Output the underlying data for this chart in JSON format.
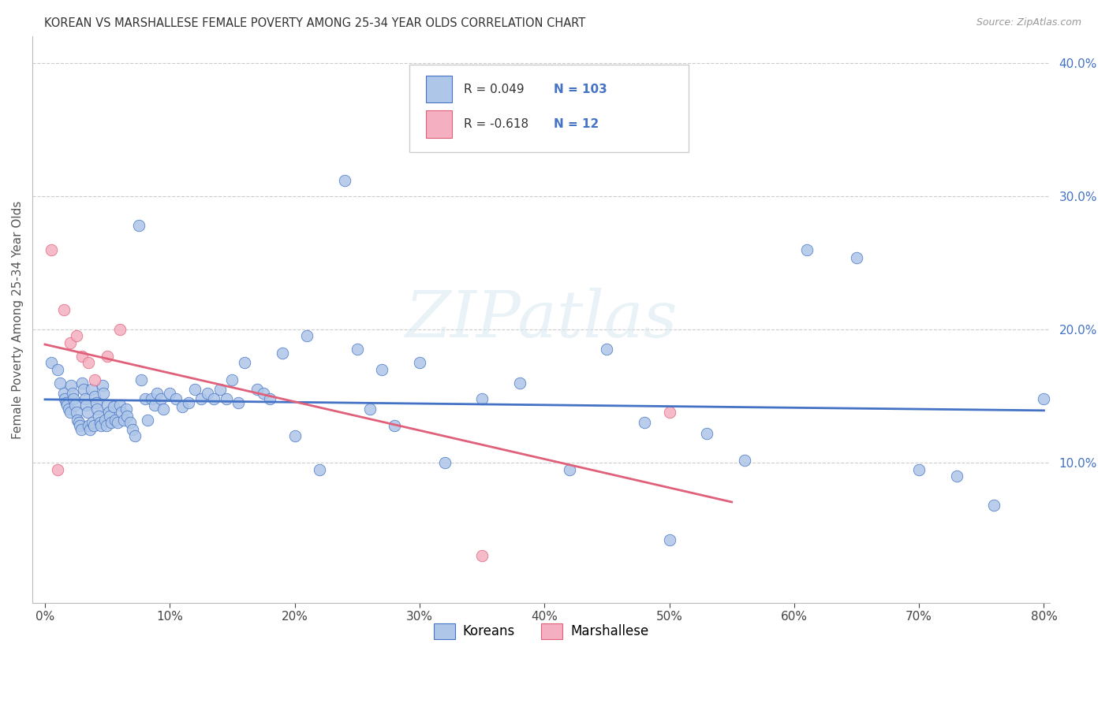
{
  "title": "KOREAN VS MARSHALLESE FEMALE POVERTY AMONG 25-34 YEAR OLDS CORRELATION CHART",
  "source": "Source: ZipAtlas.com",
  "ylabel": "Female Poverty Among 25-34 Year Olds",
  "xlim": [
    0.0,
    0.8
  ],
  "ylim": [
    0.0,
    0.42
  ],
  "xticks": [
    0.0,
    0.1,
    0.2,
    0.3,
    0.4,
    0.5,
    0.6,
    0.7,
    0.8
  ],
  "yticks_right": [
    0.1,
    0.2,
    0.3,
    0.4
  ],
  "korean_fill": "#aec6e8",
  "korean_edge": "#4472c4",
  "marsh_fill": "#f4b0c0",
  "marsh_edge": "#e0607a",
  "korean_line": "#4472c4",
  "marsh_line": "#e0607a",
  "legend_r1": "0.049",
  "legend_n1": "103",
  "legend_r2": "-0.618",
  "legend_n2": "12",
  "watermark": "ZIPatlas",
  "korean_x": [
    0.005,
    0.01,
    0.012,
    0.015,
    0.016,
    0.017,
    0.018,
    0.019,
    0.02,
    0.021,
    0.022,
    0.023,
    0.024,
    0.025,
    0.026,
    0.027,
    0.028,
    0.029,
    0.03,
    0.031,
    0.032,
    0.033,
    0.034,
    0.035,
    0.036,
    0.037,
    0.038,
    0.039,
    0.04,
    0.041,
    0.042,
    0.043,
    0.044,
    0.045,
    0.046,
    0.047,
    0.048,
    0.049,
    0.05,
    0.051,
    0.052,
    0.053,
    0.055,
    0.056,
    0.058,
    0.06,
    0.061,
    0.063,
    0.065,
    0.066,
    0.068,
    0.07,
    0.072,
    0.075,
    0.077,
    0.08,
    0.082,
    0.085,
    0.088,
    0.09,
    0.093,
    0.095,
    0.1,
    0.105,
    0.11,
    0.115,
    0.12,
    0.125,
    0.13,
    0.135,
    0.14,
    0.145,
    0.15,
    0.155,
    0.16,
    0.17,
    0.175,
    0.18,
    0.19,
    0.2,
    0.21,
    0.22,
    0.24,
    0.25,
    0.26,
    0.27,
    0.28,
    0.3,
    0.32,
    0.35,
    0.38,
    0.42,
    0.45,
    0.48,
    0.5,
    0.53,
    0.56,
    0.61,
    0.65,
    0.7,
    0.73,
    0.76,
    0.8
  ],
  "korean_y": [
    0.175,
    0.17,
    0.16,
    0.152,
    0.148,
    0.145,
    0.143,
    0.14,
    0.138,
    0.158,
    0.152,
    0.148,
    0.143,
    0.138,
    0.132,
    0.13,
    0.128,
    0.125,
    0.16,
    0.155,
    0.148,
    0.143,
    0.138,
    0.128,
    0.125,
    0.155,
    0.13,
    0.128,
    0.15,
    0.145,
    0.14,
    0.135,
    0.13,
    0.128,
    0.158,
    0.152,
    0.132,
    0.128,
    0.143,
    0.138,
    0.135,
    0.13,
    0.142,
    0.132,
    0.13,
    0.143,
    0.138,
    0.132,
    0.14,
    0.135,
    0.13,
    0.125,
    0.12,
    0.278,
    0.162,
    0.148,
    0.132,
    0.148,
    0.143,
    0.152,
    0.148,
    0.14,
    0.152,
    0.148,
    0.142,
    0.145,
    0.155,
    0.148,
    0.152,
    0.148,
    0.155,
    0.148,
    0.162,
    0.145,
    0.175,
    0.155,
    0.152,
    0.148,
    0.182,
    0.12,
    0.195,
    0.095,
    0.312,
    0.185,
    0.14,
    0.17,
    0.128,
    0.175,
    0.1,
    0.148,
    0.16,
    0.095,
    0.185,
    0.13,
    0.042,
    0.122,
    0.102,
    0.26,
    0.254,
    0.095,
    0.09,
    0.068,
    0.148
  ],
  "marsh_x": [
    0.005,
    0.01,
    0.015,
    0.02,
    0.025,
    0.03,
    0.035,
    0.04,
    0.05,
    0.06,
    0.35,
    0.5
  ],
  "marsh_y": [
    0.26,
    0.095,
    0.215,
    0.19,
    0.195,
    0.18,
    0.175,
    0.162,
    0.18,
    0.2,
    0.03,
    0.138
  ]
}
